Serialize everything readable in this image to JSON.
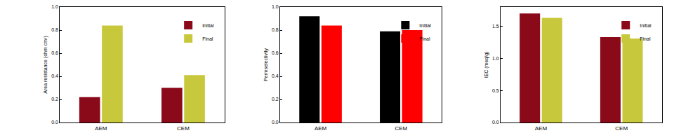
{
  "chart_data": [
    {
      "type": "bar",
      "y_label": "Area resistance (ohm cm²)",
      "categories": [
        "AEM",
        "CEM"
      ],
      "series": [
        {
          "name": "Initial",
          "color": "#8b0a1a",
          "values": [
            0.22,
            0.3
          ]
        },
        {
          "name": "Final",
          "color": "#c8c83c",
          "values": [
            0.84,
            0.41
          ]
        }
      ],
      "ylim": [
        0,
        1.0
      ],
      "yticks": [
        {
          "value": 0,
          "label": "0.0"
        },
        0.2,
        0.4,
        0.6,
        0.8,
        {
          "value": 1,
          "label": "1.0"
        }
      ],
      "legend": "upper right"
    },
    {
      "type": "bar",
      "y_label": "Permselectivity",
      "categories": [
        "AEM",
        "CEM"
      ],
      "series": [
        {
          "name": "Initial",
          "color": "#000000",
          "values": [
            0.92,
            0.79
          ]
        },
        {
          "name": "Final",
          "color": "#ff0000",
          "values": [
            0.84,
            0.8
          ]
        }
      ],
      "ylim": [
        0,
        1.0
      ],
      "yticks": [
        {
          "value": 0,
          "label": "0.0"
        },
        0.2,
        0.4,
        0.6,
        0.8,
        {
          "value": 1,
          "label": "1.0"
        }
      ],
      "legend": "upper right"
    },
    {
      "type": "bar",
      "y_label": "IEC (meq/g)",
      "categories": [
        "AEM",
        "CEM"
      ],
      "series": [
        {
          "name": "Initial",
          "color": "#8b0a1a",
          "values": [
            1.7,
            1.33
          ]
        },
        {
          "name": "Final",
          "color": "#c8c83c",
          "values": [
            1.63,
            1.31
          ]
        }
      ],
      "ylim": [
        0,
        1.8
      ],
      "yticks": [
        {
          "value": 0,
          "label": "0.0"
        },
        0.5,
        {
          "value": 1,
          "label": "1.0"
        },
        1.5
      ],
      "legend": "upper right"
    }
  ]
}
